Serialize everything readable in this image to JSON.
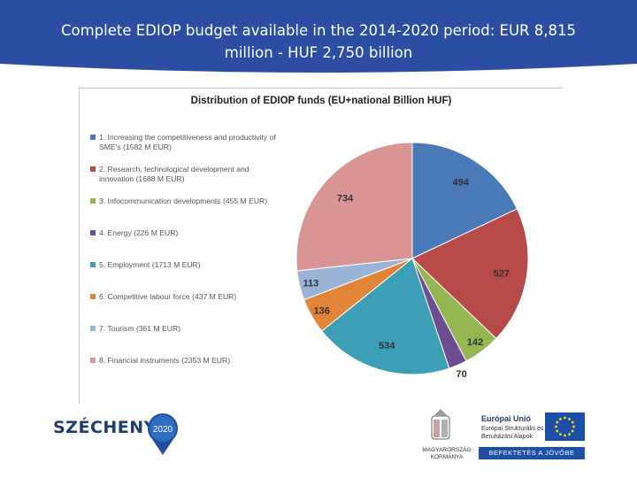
{
  "header": {
    "title_line1": "Complete EDIOP budget available in the 2014-2020 period: EUR 8,815",
    "title_line2": "million - HUF 2,750 billion",
    "band_color": "#2b4ea2"
  },
  "chart_data": {
    "type": "pie",
    "title": "Distribution of EDIOP funds (EU+national Billion HUF)",
    "legend_position": "left",
    "categories": [
      "1. Increasing the competitiveness and productivity of SME's (1582 M EUR)",
      "2. Research, technological development and innovation (1688 M EUR)",
      "3. Infocommunication developments (455 M EUR)",
      "4. Energy (226 M EUR)",
      "5. Employment (1713 M EUR)",
      "6. Competitive labour force (437 M EUR)",
      "7. Tourism (361 M EUR)",
      "8. Financial instruments (2353 M EUR)"
    ],
    "values": [
      494,
      527,
      142,
      70,
      534,
      136,
      113,
      734
    ],
    "data_labels": [
      "494",
      "527",
      "142",
      "70",
      "534",
      "136",
      "113",
      "734"
    ],
    "colors": [
      "#4a79b8",
      "#b54a48",
      "#93b552",
      "#6d4f91",
      "#3d9fb5",
      "#e0843a",
      "#9ab4d8",
      "#d99593"
    ]
  },
  "footer": {
    "szechenyi": "SZÉCHENYI",
    "badge_year": "2020",
    "government": "MAGYARORSZÁG KORMÁNYA",
    "eu_title": "Európai Unió",
    "eu_sub": "Európai Strukturális és Beruházási Alapok",
    "eu_banner": "BEFEKTETÉS A JÖVŐBE"
  }
}
